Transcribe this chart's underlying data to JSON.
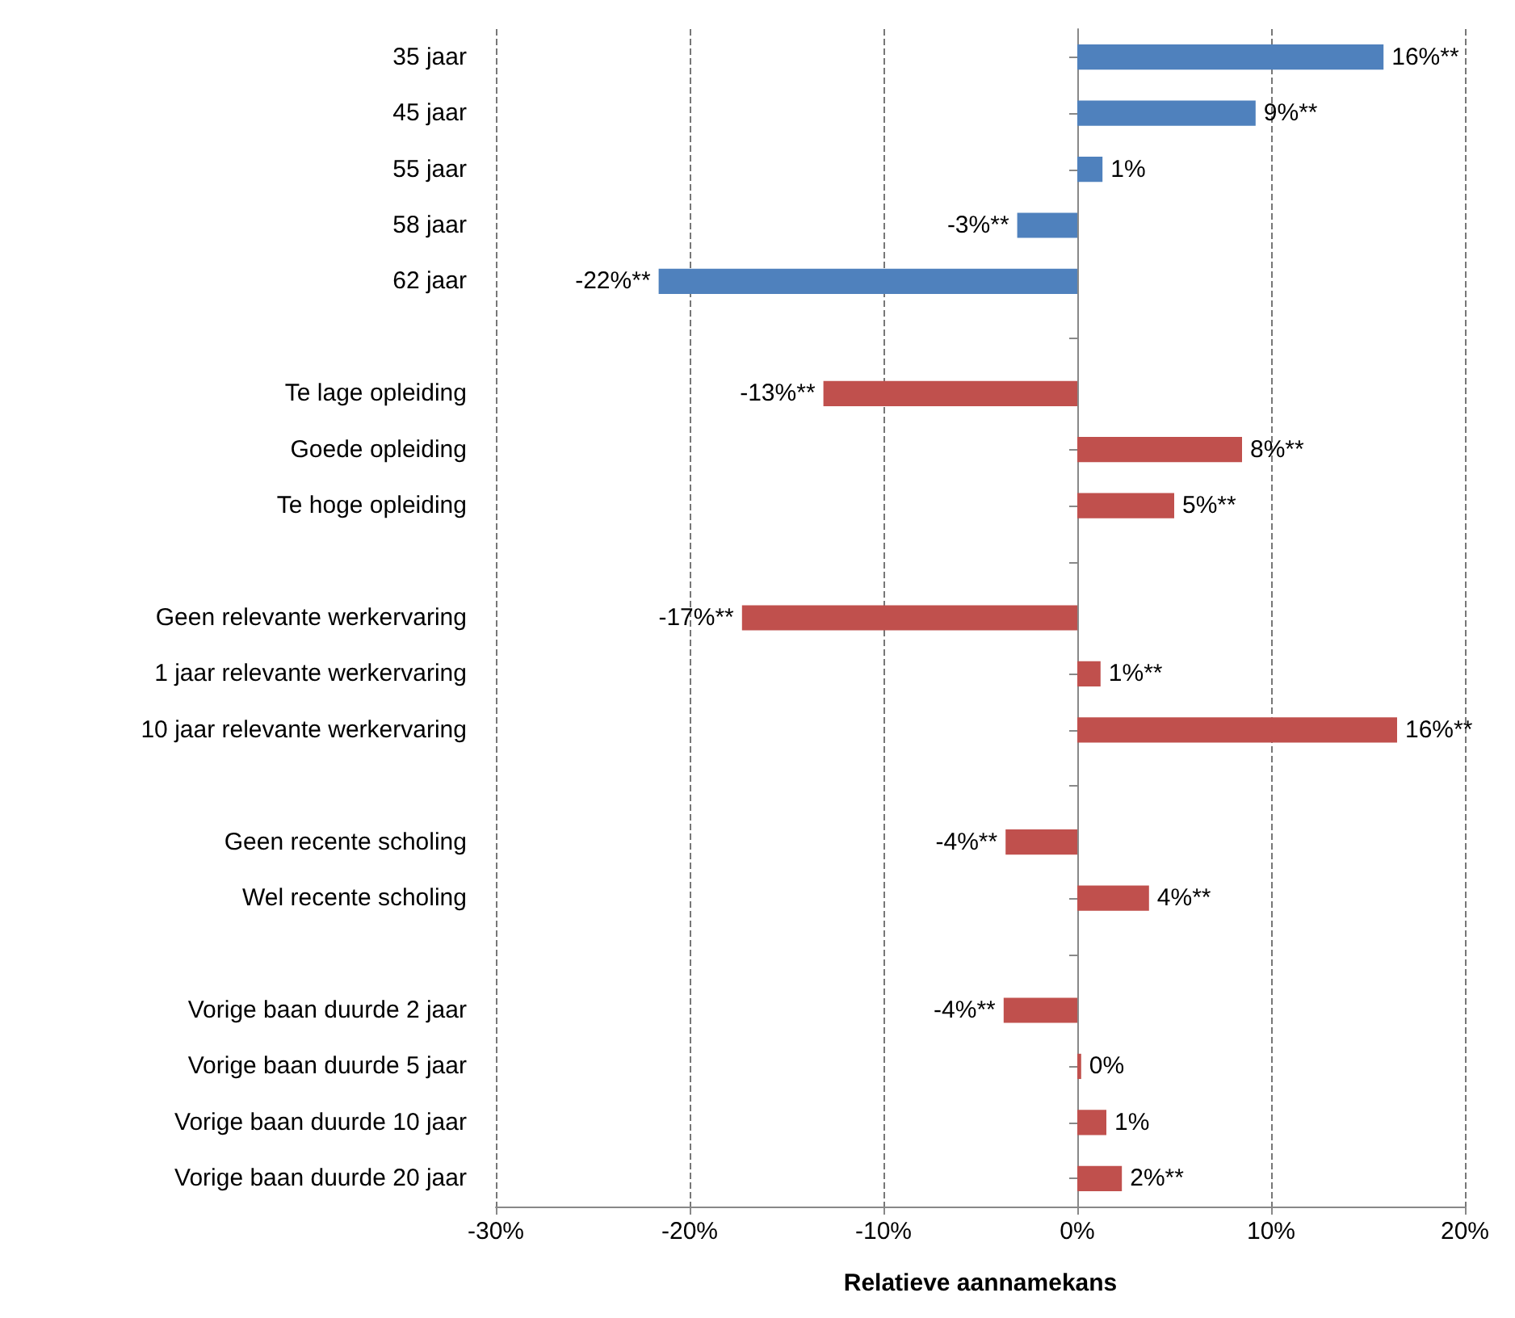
{
  "chart_data": {
    "type": "bar",
    "orientation": "horizontal",
    "xlabel": "Relatieve aannamekans",
    "categories": [
      "35 jaar",
      "45 jaar",
      "55 jaar",
      "58 jaar",
      "62 jaar",
      null,
      "Te lage opleiding",
      "Goede opleiding",
      "Te hoge opleiding",
      null,
      "Geen relevante werkervaring",
      "1 jaar relevante werkervaring",
      "10 jaar relevante werkervaring",
      null,
      "Geen recente scholing",
      "Wel recente scholing",
      null,
      "Vorige baan duurde 2 jaar",
      "Vorige baan duurde 5 jaar",
      "Vorige baan duurde 10 jaar",
      "Vorige baan duurde 20 jaar"
    ],
    "values": [
      15.8,
      9.2,
      1.3,
      -3.1,
      -21.6,
      null,
      -13.1,
      8.5,
      5.0,
      null,
      -17.3,
      1.2,
      16.5,
      null,
      -3.7,
      3.7,
      null,
      -3.8,
      0.2,
      1.5,
      2.3
    ],
    "value_labels": [
      "16%**",
      "9%**",
      "1%",
      "-3%**",
      "-22%**",
      null,
      "-13%**",
      "8%**",
      "5%**",
      null,
      "-17%**",
      "1%**",
      "16%**",
      null,
      "-4%**",
      "4%**",
      null,
      "-4%**",
      "0%",
      "1%",
      "2%**"
    ],
    "colors": [
      "#4f81bd",
      "#4f81bd",
      "#4f81bd",
      "#4f81bd",
      "#4f81bd",
      null,
      "#c0504d",
      "#c0504d",
      "#c0504d",
      null,
      "#c0504d",
      "#c0504d",
      "#c0504d",
      null,
      "#c0504d",
      "#c0504d",
      null,
      "#c0504d",
      "#c0504d",
      "#c0504d",
      "#c0504d"
    ],
    "xlim": [
      -30,
      20
    ],
    "xticks": [
      {
        "value": -30,
        "label": "-30%"
      },
      {
        "value": -20,
        "label": "-20%"
      },
      {
        "value": -10,
        "label": "-10%"
      },
      {
        "value": 0,
        "label": "0%"
      },
      {
        "value": 10,
        "label": "10%"
      },
      {
        "value": 20,
        "label": "20%"
      }
    ],
    "grid": "x"
  }
}
